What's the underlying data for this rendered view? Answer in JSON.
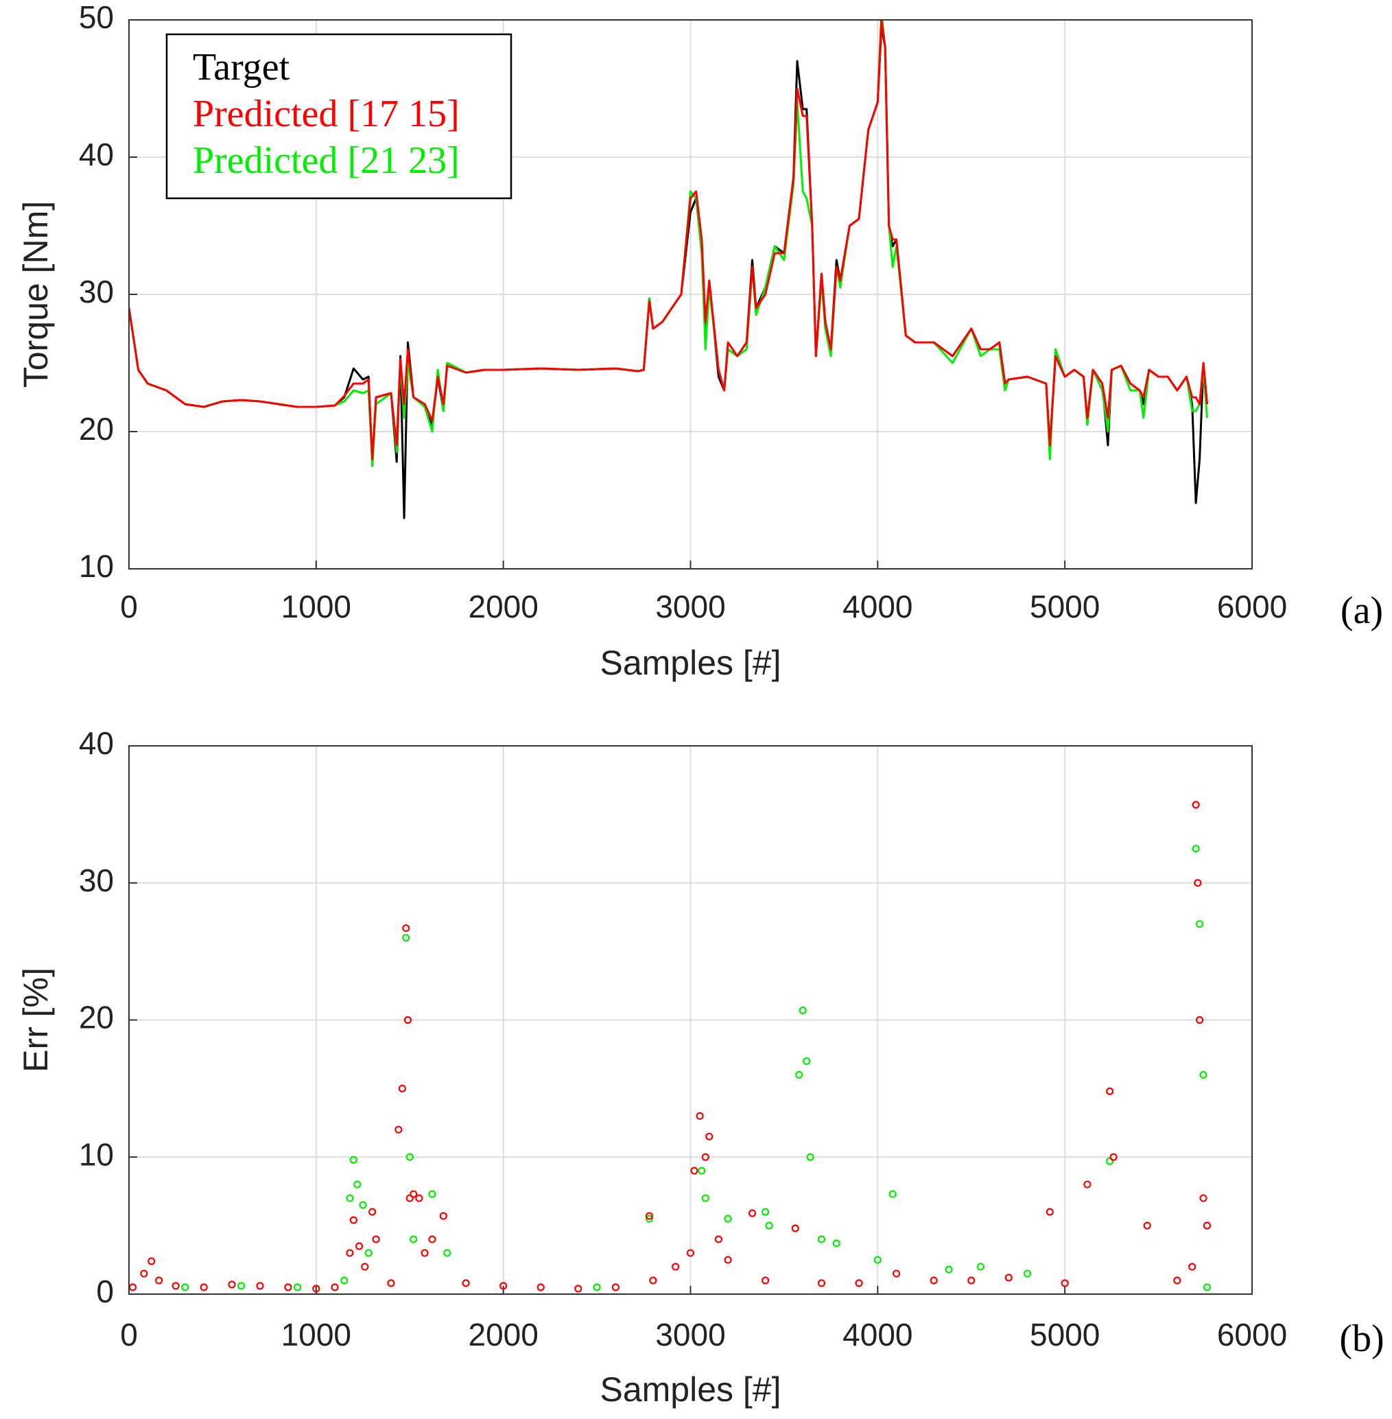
{
  "chart_data": [
    {
      "type": "line",
      "xlabel": "Samples [#]",
      "ylabel": "Torque [Nm]",
      "panel": "(a)",
      "legend": "upper left",
      "grid": true,
      "xlim": [
        0,
        6000
      ],
      "ylim": [
        10,
        50
      ],
      "xticks": [
        0,
        1000,
        2000,
        3000,
        4000,
        5000,
        6000
      ],
      "yticks": [
        10,
        20,
        30,
        40,
        50
      ],
      "x": [
        0,
        50,
        100,
        200,
        300,
        400,
        500,
        600,
        700,
        800,
        900,
        1000,
        1100,
        1150,
        1200,
        1250,
        1280,
        1300,
        1320,
        1400,
        1430,
        1450,
        1470,
        1490,
        1520,
        1580,
        1620,
        1650,
        1680,
        1700,
        1800,
        1900,
        2000,
        2200,
        2400,
        2600,
        2720,
        2750,
        2780,
        2800,
        2850,
        2900,
        2950,
        3000,
        3030,
        3060,
        3080,
        3100,
        3150,
        3180,
        3200,
        3250,
        3300,
        3330,
        3350,
        3400,
        3450,
        3500,
        3550,
        3570,
        3600,
        3620,
        3650,
        3670,
        3700,
        3720,
        3750,
        3780,
        3800,
        3850,
        3900,
        3950,
        4000,
        4020,
        4040,
        4060,
        4080,
        4100,
        4150,
        4200,
        4300,
        4400,
        4500,
        4550,
        4600,
        4650,
        4680,
        4700,
        4800,
        4900,
        4920,
        4950,
        5000,
        5050,
        5100,
        5120,
        5150,
        5200,
        5230,
        5250,
        5300,
        5350,
        5400,
        5420,
        5450,
        5500,
        5550,
        5600,
        5650,
        5680,
        5700,
        5720,
        5740,
        5760
      ],
      "series": [
        {
          "name": "Target",
          "color": "#000000",
          "values": [
            29,
            24.5,
            23.5,
            23,
            22,
            21.8,
            22.2,
            22.3,
            22.2,
            22,
            21.8,
            21.8,
            21.9,
            22.5,
            24.6,
            23.8,
            24,
            17.5,
            22.5,
            22.8,
            17.8,
            25.5,
            13.7,
            26.5,
            22.5,
            22,
            20.5,
            24,
            21.5,
            25,
            24.3,
            24.5,
            24.5,
            24.6,
            24.5,
            24.6,
            24.4,
            24.5,
            29.7,
            27.5,
            28,
            29,
            30,
            36,
            37,
            33,
            27,
            31,
            24,
            23,
            26,
            25.5,
            26.5,
            32.5,
            29,
            30.5,
            33.5,
            33,
            38.5,
            47,
            43.5,
            43.5,
            35,
            25.5,
            31.5,
            28,
            26,
            32.5,
            31,
            35,
            35.5,
            42,
            44,
            49.5,
            48,
            35,
            33.5,
            34,
            27,
            26.5,
            26.5,
            25.5,
            27.5,
            26,
            26,
            26.5,
            23.5,
            23.8,
            24,
            23.5,
            18.8,
            25.5,
            24,
            24.5,
            24,
            20.5,
            24.5,
            23.5,
            19,
            24.5,
            24.8,
            23.5,
            23,
            22,
            24.5,
            24,
            24,
            23,
            24,
            22,
            14.8,
            18,
            25,
            22
          ]
        },
        {
          "name": "Predicted [21 23]",
          "color": "#00ee00",
          "values": [
            29,
            24.5,
            23.5,
            23,
            22,
            21.8,
            22.2,
            22.3,
            22.2,
            22,
            21.8,
            21.8,
            21.9,
            22.2,
            23,
            22.8,
            23,
            17.5,
            22,
            22.8,
            18.5,
            25,
            21,
            25,
            22.5,
            21.8,
            20,
            24.5,
            21.5,
            25,
            24.3,
            24.5,
            24.5,
            24.6,
            24.5,
            24.6,
            24.4,
            24.5,
            29.7,
            27.5,
            28,
            29,
            30,
            37.5,
            37,
            33,
            26,
            30.5,
            24.5,
            23,
            26,
            25.5,
            26,
            32,
            28.5,
            30.5,
            33.5,
            32.5,
            38,
            44,
            37.5,
            37,
            35,
            25.5,
            31,
            27.5,
            25.5,
            32,
            30.5,
            35,
            35.5,
            42,
            44,
            50.5,
            48,
            35,
            32,
            33.5,
            27,
            26.5,
            26.5,
            25,
            27.5,
            25.5,
            26,
            26,
            23,
            23.8,
            24,
            23.5,
            18,
            26,
            24,
            24.5,
            24,
            20.5,
            24.5,
            23,
            20,
            24.5,
            24.8,
            23,
            23,
            21,
            24.5,
            24,
            24,
            23,
            24,
            21.5,
            21.5,
            22,
            24.5,
            21
          ]
        },
        {
          "name": "Predicted [17 15]",
          "color": "#ff0000",
          "values": [
            29,
            24.5,
            23.5,
            23,
            22,
            21.8,
            22.2,
            22.3,
            22.2,
            22,
            21.8,
            21.8,
            21.9,
            22.6,
            23.5,
            23.5,
            23.8,
            18,
            22.5,
            22.8,
            19,
            25.3,
            22,
            26,
            22.5,
            22,
            20.8,
            24,
            22,
            24.8,
            24.3,
            24.5,
            24.5,
            24.6,
            24.5,
            24.6,
            24.4,
            24.5,
            29.5,
            27.5,
            28,
            29,
            30,
            37,
            37.5,
            34,
            28,
            31,
            24.5,
            23,
            26.5,
            25.5,
            26.5,
            32,
            29,
            30,
            33,
            33,
            38.5,
            45,
            43,
            43,
            35,
            25.5,
            31.5,
            28,
            26,
            32,
            31,
            35,
            35.5,
            42,
            44,
            50,
            48,
            35,
            34,
            34,
            27,
            26.5,
            26.5,
            25.5,
            27.5,
            26,
            26,
            26.5,
            23.5,
            23.8,
            24,
            23.5,
            19,
            25.5,
            24,
            24.5,
            24,
            21,
            24.5,
            23.5,
            21,
            24.5,
            24.8,
            23.5,
            23,
            22.5,
            24.5,
            24,
            24,
            23,
            24,
            22.5,
            22.5,
            22,
            25,
            22
          ]
        }
      ]
    },
    {
      "type": "scatter",
      "xlabel": "Samples [#]",
      "ylabel": "Err [%]",
      "panel": "(b)",
      "grid": true,
      "xlim": [
        0,
        6000
      ],
      "ylim": [
        0,
        40
      ],
      "xticks": [
        0,
        1000,
        2000,
        3000,
        4000,
        5000,
        6000
      ],
      "yticks": [
        0,
        10,
        20,
        30,
        40
      ],
      "series": [
        {
          "color": "#00ee00",
          "x": [
            300,
            600,
            900,
            1150,
            1180,
            1200,
            1220,
            1250,
            1280,
            1480,
            1500,
            1520,
            1620,
            1700,
            2500,
            2780,
            3060,
            3080,
            3200,
            3400,
            3420,
            3580,
            3600,
            3620,
            3640,
            3700,
            3780,
            4000,
            4080,
            4380,
            4550,
            4800,
            5240,
            5700,
            5720,
            5740,
            5760
          ],
          "values": [
            0.5,
            0.6,
            0.5,
            1,
            7,
            9.8,
            8,
            6.5,
            3,
            26,
            10,
            4,
            7.3,
            3,
            0.5,
            5.5,
            9,
            7,
            5.5,
            6,
            5,
            16,
            20.7,
            17,
            10,
            4,
            3.7,
            2.5,
            7.3,
            1.8,
            2,
            1.5,
            9.7,
            32.5,
            27,
            16,
            0.5
          ]
        },
        {
          "color": "#ff0000",
          "x": [
            20,
            80,
            120,
            160,
            250,
            400,
            550,
            700,
            850,
            1000,
            1100,
            1180,
            1200,
            1230,
            1260,
            1300,
            1320,
            1400,
            1440,
            1460,
            1480,
            1490,
            1500,
            1520,
            1550,
            1580,
            1620,
            1680,
            1800,
            2000,
            2200,
            2400,
            2600,
            2780,
            2800,
            2920,
            3000,
            3020,
            3050,
            3080,
            3100,
            3150,
            3200,
            3330,
            3400,
            3560,
            3700,
            3900,
            4100,
            4300,
            4500,
            4700,
            4920,
            5000,
            5120,
            5240,
            5260,
            5440,
            5600,
            5680,
            5700,
            5710,
            5720,
            5740,
            5760
          ],
          "values": [
            0.5,
            1.5,
            2.4,
            1,
            0.6,
            0.5,
            0.7,
            0.6,
            0.5,
            0.4,
            0.5,
            3,
            5.4,
            3.5,
            2,
            6,
            4,
            0.8,
            12,
            15,
            26.7,
            20,
            7,
            7.3,
            7,
            3,
            4,
            5.7,
            0.8,
            0.6,
            0.5,
            0.4,
            0.5,
            5.7,
            1,
            2,
            3,
            9,
            13,
            10,
            11.5,
            4,
            2.5,
            5.9,
            1,
            4.8,
            0.8,
            0.8,
            1.5,
            1,
            1,
            1.2,
            6,
            0.8,
            8,
            14.8,
            10,
            5,
            1,
            2,
            35.7,
            30,
            20,
            7,
            5
          ]
        }
      ]
    }
  ]
}
